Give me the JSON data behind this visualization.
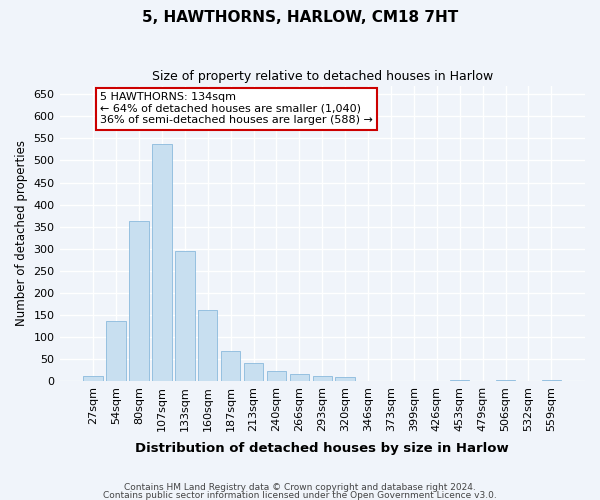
{
  "title_line1": "5, HAWTHORNS, HARLOW, CM18 7HT",
  "title_line2": "Size of property relative to detached houses in Harlow",
  "xlabel": "Distribution of detached houses by size in Harlow",
  "ylabel": "Number of detached properties",
  "categories": [
    "27sqm",
    "54sqm",
    "80sqm",
    "107sqm",
    "133sqm",
    "160sqm",
    "187sqm",
    "213sqm",
    "240sqm",
    "266sqm",
    "293sqm",
    "320sqm",
    "346sqm",
    "373sqm",
    "399sqm",
    "426sqm",
    "453sqm",
    "479sqm",
    "506sqm",
    "532sqm",
    "559sqm"
  ],
  "values": [
    10,
    137,
    362,
    537,
    295,
    160,
    67,
    40,
    22,
    15,
    10,
    8,
    0,
    0,
    0,
    0,
    3,
    0,
    3,
    0,
    3
  ],
  "bar_color": "#c8dff0",
  "bar_edge_color": "#7ab0d8",
  "annotation_text": "5 HAWTHORNS: 134sqm\n← 64% of detached houses are smaller (1,040)\n36% of semi-detached houses are larger (588) →",
  "annotation_box_facecolor": "#ffffff",
  "annotation_box_edgecolor": "#cc0000",
  "ylim": [
    0,
    670
  ],
  "yticks": [
    0,
    50,
    100,
    150,
    200,
    250,
    300,
    350,
    400,
    450,
    500,
    550,
    600,
    650
  ],
  "background_color": "#f0f4fa",
  "grid_color": "#ffffff",
  "footer_line1": "Contains HM Land Registry data © Crown copyright and database right 2024.",
  "footer_line2": "Contains public sector information licensed under the Open Government Licence v3.0."
}
